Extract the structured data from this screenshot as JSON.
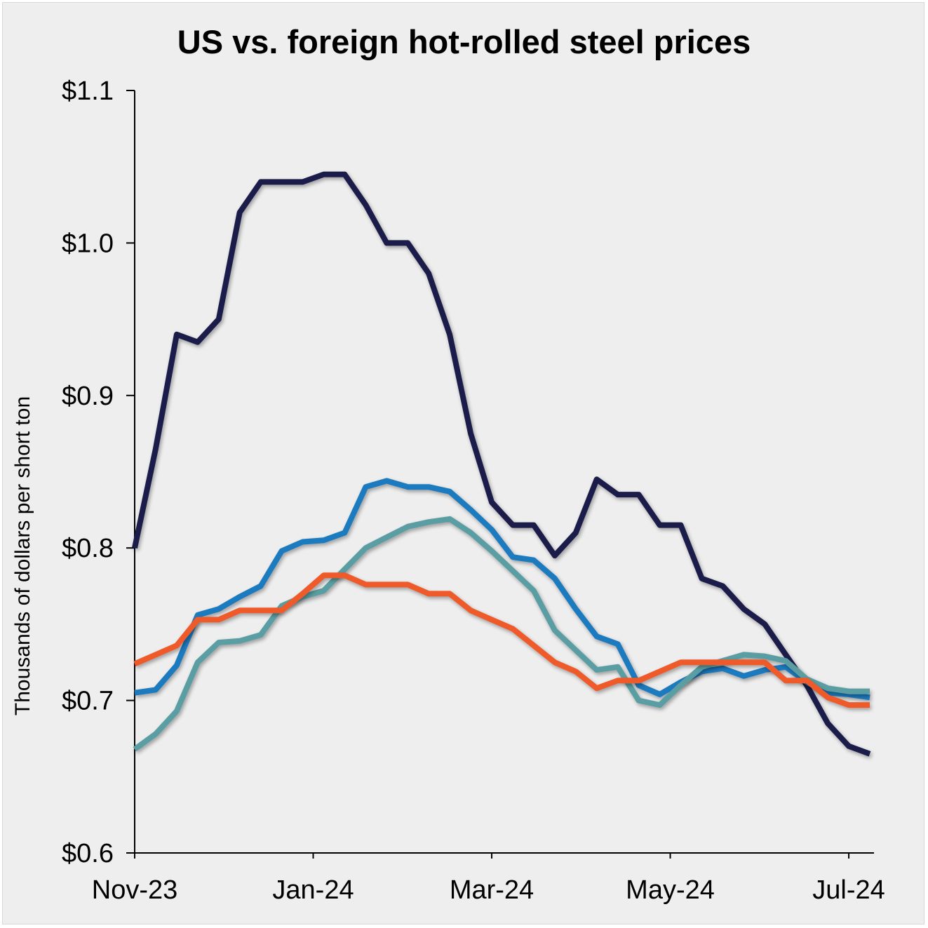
{
  "chart_data": {
    "type": "line",
    "title": "US vs. foreign hot-rolled steel prices",
    "xlabel": "",
    "ylabel": "Thousands of dollars per short ton",
    "ylim": [
      0.6,
      1.1
    ],
    "y_ticks": [
      1.1,
      1.0,
      0.9,
      0.8,
      0.7,
      0.6
    ],
    "y_tick_labels": [
      "$1.1",
      "$1.0",
      "$0.9",
      "$0.8",
      "$0.7",
      "$0.6"
    ],
    "x_tick_labels": [
      "Nov-23",
      "Jan-24",
      "Mar-24",
      "May-24",
      "Jul-24"
    ],
    "x_tick_index": [
      0,
      8.5,
      17,
      25.5,
      34
    ],
    "n_points": 36,
    "grid": false,
    "legend": "none",
    "series": [
      {
        "color": "#1b1f4b",
        "values": [
          0.8,
          0.865,
          0.94,
          0.935,
          0.95,
          1.02,
          1.04,
          1.04,
          1.04,
          1.045,
          1.045,
          1.025,
          1.0,
          1.0,
          0.98,
          0.94,
          0.875,
          0.83,
          0.815,
          0.815,
          0.795,
          0.81,
          0.845,
          0.835,
          0.835,
          0.815,
          0.815,
          0.78,
          0.775,
          0.76,
          0.75,
          0.73,
          0.71,
          0.685,
          0.67,
          0.665
        ]
      },
      {
        "color": "#1c7abf",
        "values": [
          0.705,
          0.707,
          0.723,
          0.756,
          0.76,
          0.768,
          0.775,
          0.798,
          0.804,
          0.805,
          0.81,
          0.84,
          0.844,
          0.84,
          0.84,
          0.837,
          0.825,
          0.812,
          0.794,
          0.792,
          0.78,
          0.76,
          0.742,
          0.737,
          0.71,
          0.704,
          0.712,
          0.719,
          0.721,
          0.716,
          0.72,
          0.722,
          0.712,
          0.705,
          0.704,
          0.702
        ]
      },
      {
        "color": "#5a9ea3",
        "values": [
          0.668,
          0.678,
          0.693,
          0.725,
          0.738,
          0.739,
          0.743,
          0.762,
          0.768,
          0.772,
          0.786,
          0.8,
          0.807,
          0.814,
          0.817,
          0.819,
          0.81,
          0.798,
          0.785,
          0.772,
          0.746,
          0.733,
          0.72,
          0.722,
          0.7,
          0.697,
          0.71,
          0.722,
          0.726,
          0.73,
          0.729,
          0.726,
          0.714,
          0.708,
          0.706,
          0.706
        ]
      },
      {
        "color": "#ee5a2c",
        "values": [
          0.724,
          0.73,
          0.736,
          0.753,
          0.753,
          0.759,
          0.759,
          0.759,
          0.77,
          0.782,
          0.782,
          0.776,
          0.776,
          0.776,
          0.77,
          0.77,
          0.759,
          0.753,
          0.747,
          0.736,
          0.725,
          0.719,
          0.708,
          0.713,
          0.713,
          0.719,
          0.725,
          0.725,
          0.725,
          0.725,
          0.725,
          0.713,
          0.713,
          0.702,
          0.697,
          0.697
        ]
      }
    ]
  }
}
